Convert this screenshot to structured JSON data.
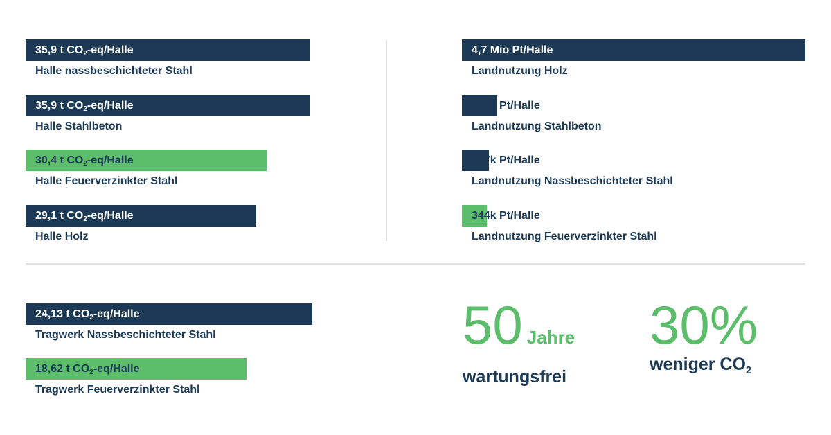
{
  "colors": {
    "navy": "#1c3a56",
    "green": "#5cbd6a",
    "divider": "#dfe3e8"
  },
  "chart_data": [
    {
      "type": "bar",
      "orientation": "horizontal",
      "categories": [
        "Halle nassbeschichteter Stahl",
        "Halle Stahlbeton",
        "Halle Feuerverzinkter Stahl",
        "Halle Holz"
      ],
      "values": [
        35.9,
        35.9,
        30.4,
        29.1
      ],
      "value_labels": [
        {
          "pre": "35,9 t CO",
          "sub": "2",
          "post": "-eq/Halle"
        },
        {
          "pre": "35,9 t CO",
          "sub": "2",
          "post": "-eq/Halle"
        },
        {
          "pre": "30,4 t CO",
          "sub": "2",
          "post": "-eq/Halle"
        },
        {
          "pre": "29,1 t CO",
          "sub": "2",
          "post": "-eq/Halle"
        }
      ],
      "bar_colors": [
        "#1c3a56",
        "#1c3a56",
        "#5cbd6a",
        "#1c3a56"
      ],
      "text_colors": [
        "light",
        "light",
        "dark",
        "light"
      ],
      "xlim": [
        0,
        35.9
      ]
    },
    {
      "type": "bar",
      "orientation": "horizontal",
      "categories": [
        "Landnutzung Holz",
        "Landnutzung Stahlbeton",
        "Landnutzung Nassbeschichteter Stahl",
        "Landnutzung Feuerverzinkter Stahl"
      ],
      "values": [
        4700000,
        484000,
        367000,
        344000
      ],
      "value_labels": [
        {
          "pre": "4,7 Mio Pt/Halle",
          "sub": "",
          "post": ""
        },
        {
          "pre": "484k Pt/Halle",
          "sub": "",
          "post": ""
        },
        {
          "pre": "367k Pt/Halle",
          "sub": "",
          "post": ""
        },
        {
          "pre": "344k Pt/Halle",
          "sub": "",
          "post": ""
        }
      ],
      "bar_colors": [
        "#1c3a56",
        "#1c3a56",
        "#1c3a56",
        "#5cbd6a"
      ],
      "text_colors": [
        "light",
        "dark",
        "dark",
        "dark"
      ],
      "xlim": [
        0,
        4700000
      ]
    },
    {
      "type": "bar",
      "orientation": "horizontal",
      "categories": [
        "Tragwerk Nassbeschichteter Stahl",
        "Tragwerk Feuerverzinkter Stahl"
      ],
      "values": [
        24.13,
        18.62
      ],
      "value_labels": [
        {
          "pre": "24,13 t CO",
          "sub": "2",
          "post": "-eq/Halle"
        },
        {
          "pre": "18,62 t CO",
          "sub": "2",
          "post": "-eq/Halle"
        }
      ],
      "bar_colors": [
        "#1c3a56",
        "#5cbd6a"
      ],
      "text_colors": [
        "light",
        "dark"
      ],
      "xlim": [
        0,
        24.13
      ]
    }
  ],
  "stats": [
    {
      "big": "50",
      "unit": "Jahre",
      "label_pre": "wartungsfrei",
      "label_sub": ""
    },
    {
      "big": "30%",
      "unit": "",
      "label_pre": "weniger CO",
      "label_sub": "2"
    }
  ]
}
